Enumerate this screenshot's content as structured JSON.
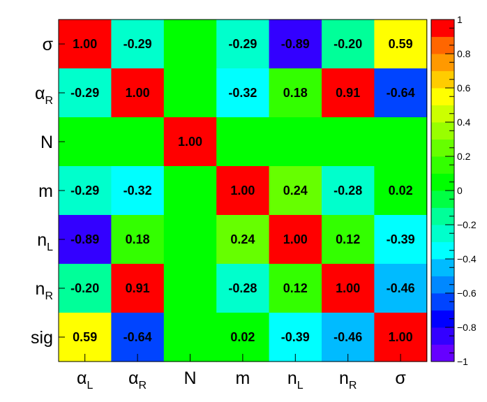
{
  "chart_data": {
    "type": "heatmap",
    "title": "",
    "x_labels": [
      {
        "base": "α",
        "sub": "L"
      },
      {
        "base": "α",
        "sub": "R"
      },
      {
        "base": "N",
        "sub": ""
      },
      {
        "base": "m",
        "sub": ""
      },
      {
        "base": "n",
        "sub": "L"
      },
      {
        "base": "n",
        "sub": "R"
      },
      {
        "base": "σ",
        "sub": ""
      }
    ],
    "y_labels_top_to_bottom": [
      {
        "base": "σ",
        "sub": ""
      },
      {
        "base": "α",
        "sub": "R"
      },
      {
        "base": "N",
        "sub": ""
      },
      {
        "base": "m",
        "sub": ""
      },
      {
        "base": "n",
        "sub": "L"
      },
      {
        "base": "n",
        "sub": "R"
      },
      {
        "base": "sig",
        "sub": ""
      }
    ],
    "values": [
      [
        1.0,
        -0.29,
        0,
        -0.29,
        -0.89,
        -0.2,
        0.59
      ],
      [
        -0.29,
        1.0,
        0,
        -0.32,
        0.18,
        0.91,
        -0.64
      ],
      [
        0,
        0,
        1.0,
        0,
        0,
        0,
        0
      ],
      [
        -0.29,
        -0.32,
        0,
        1.0,
        0.24,
        -0.28,
        0.02
      ],
      [
        -0.89,
        0.18,
        0,
        0.24,
        1.0,
        0.12,
        -0.39
      ],
      [
        -0.2,
        0.91,
        0,
        -0.28,
        0.12,
        1.0,
        -0.46
      ],
      [
        0.59,
        -0.64,
        0,
        0.02,
        -0.39,
        -0.46,
        1.0
      ]
    ],
    "cell_text": [
      [
        "1.00",
        "-0.29",
        "",
        "-0.29",
        "-0.89",
        "-0.20",
        "0.59"
      ],
      [
        "-0.29",
        "1.00",
        "",
        "-0.32",
        "0.18",
        "0.91",
        "-0.64"
      ],
      [
        "",
        "",
        "1.00",
        "",
        "",
        "",
        ""
      ],
      [
        "-0.29",
        "-0.32",
        "",
        "1.00",
        "0.24",
        "-0.28",
        "0.02"
      ],
      [
        "-0.89",
        "0.18",
        "",
        "0.24",
        "1.00",
        "0.12",
        "-0.39"
      ],
      [
        "-0.20",
        "0.91",
        "",
        "-0.28",
        "0.12",
        "1.00",
        "-0.46"
      ],
      [
        "0.59",
        "-0.64",
        "",
        "0.02",
        "-0.39",
        "-0.46",
        "1.00"
      ]
    ],
    "zlim": [
      -1,
      1
    ],
    "color_bins": 20,
    "palette": [
      "#6600ff",
      "#3300ff",
      "#0000ff",
      "#0044ff",
      "#0088ff",
      "#00bbff",
      "#00ffff",
      "#00ffcc",
      "#00ff99",
      "#00ff44",
      "#00ff00",
      "#33ff00",
      "#66ff00",
      "#99ff00",
      "#ccff00",
      "#ffff00",
      "#ffcc00",
      "#ff9900",
      "#ff6600",
      "#ff0000"
    ],
    "colorbar_ticks": [
      "1",
      "0.8",
      "0.6",
      "0.4",
      "0.2",
      "0",
      "−0.2",
      "−0.4",
      "−0.6",
      "−0.8",
      "−1"
    ],
    "grid": false,
    "legend": "colorbar-right"
  }
}
